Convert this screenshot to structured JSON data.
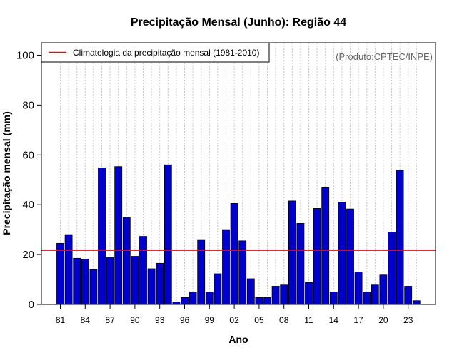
{
  "chart_data": {
    "type": "bar",
    "title": "Precipitação Mensal (Junho): Região 44",
    "xlabel": "Ano",
    "ylabel": "Precipitação mensal (mm)",
    "credit": "(Produto:CPTEC/INPE)",
    "ylim": [
      0,
      105
    ],
    "yticks": [
      0,
      20,
      40,
      60,
      80,
      100
    ],
    "grid": "vertical dotted",
    "legend_position": "top-left",
    "bar_color": "#0000cc",
    "reference_line": {
      "name": "Climatologia da precipitação mensal (1981-2010)",
      "value": 21.7,
      "color": "#ff0000"
    },
    "categories": [
      "81",
      "82",
      "83",
      "84",
      "85",
      "86",
      "87",
      "88",
      "89",
      "90",
      "91",
      "92",
      "93",
      "94",
      "95",
      "96",
      "97",
      "98",
      "99",
      "00",
      "01",
      "02",
      "03",
      "04",
      "05",
      "06",
      "07",
      "08",
      "09",
      "10",
      "11",
      "12",
      "13",
      "14",
      "15",
      "16",
      "17",
      "18",
      "19",
      "20",
      "21",
      "22",
      "23",
      "24"
    ],
    "xtick_labels": [
      "81",
      "84",
      "87",
      "90",
      "93",
      "96",
      "99",
      "02",
      "05",
      "08",
      "11",
      "14",
      "17",
      "20",
      "23"
    ],
    "values": [
      24.5,
      28.0,
      18.5,
      18.2,
      14.0,
      54.8,
      19.0,
      55.3,
      35.0,
      19.3,
      27.3,
      14.3,
      16.5,
      56.0,
      1.0,
      2.8,
      5.0,
      26.0,
      5.0,
      12.3,
      30.0,
      40.5,
      25.5,
      10.3,
      2.8,
      2.8,
      7.3,
      7.8,
      41.5,
      32.5,
      8.8,
      38.5,
      46.8,
      5.0,
      41.0,
      38.3,
      13.0,
      5.0,
      7.8,
      11.8,
      29.0,
      53.8,
      7.3,
      1.5
    ]
  }
}
